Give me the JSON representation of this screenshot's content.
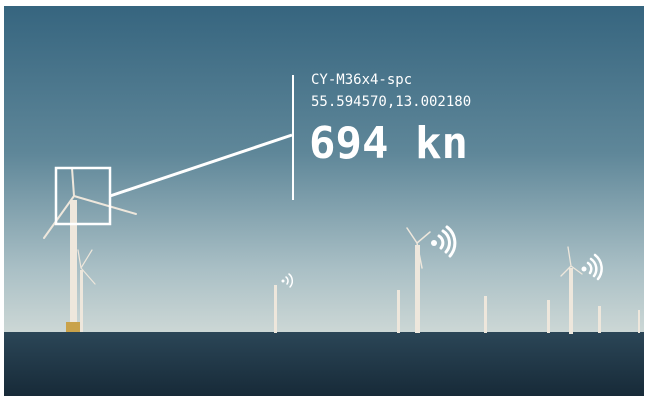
{
  "overlay": {
    "device_id": "CY-M36x4-spc",
    "coordinates": "55.594570,13.002180",
    "reading": "694 kn"
  }
}
